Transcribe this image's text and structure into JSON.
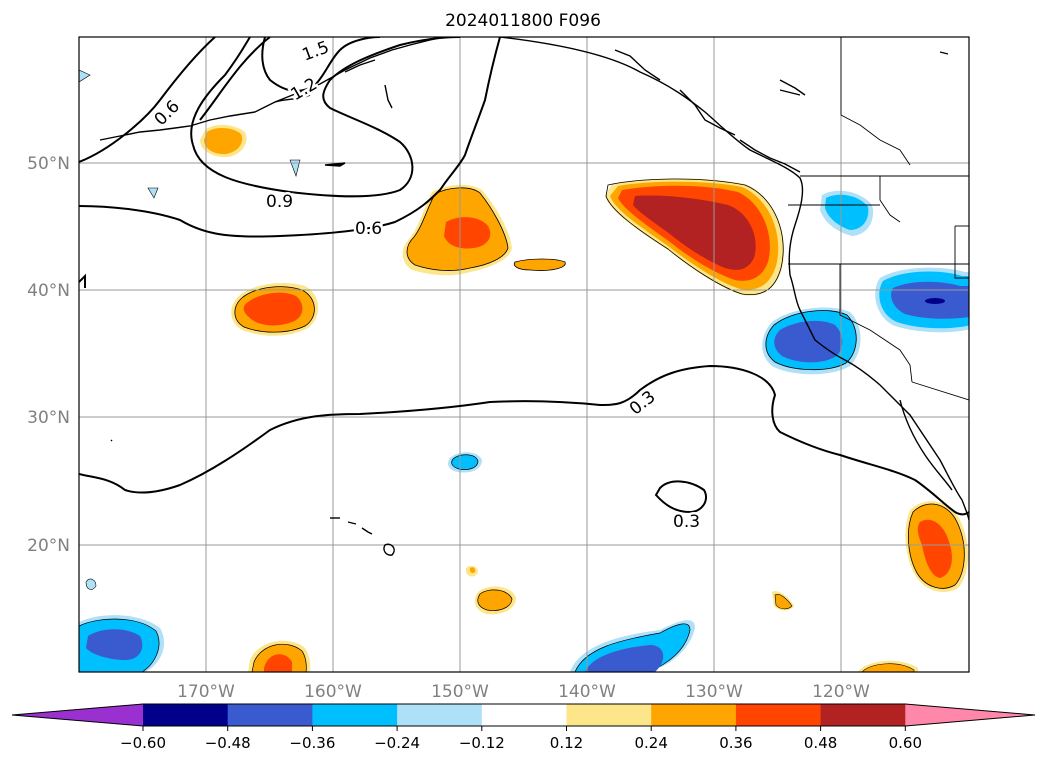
{
  "title": "2024011800 F096",
  "lon_labels": [
    "170°W",
    "160°W",
    "150°W",
    "140°W",
    "130°W",
    "120°W"
  ],
  "lat_labels": [
    "50°N",
    "40°N",
    "30°N",
    "20°N"
  ],
  "contour_labels": {
    "c06_top": "0.6",
    "c15": "1.5",
    "c12": "1.2",
    "c09": "0.9",
    "c06_mid": "0.6",
    "c03_main": "0.3",
    "c03_small": "0.3"
  },
  "colorbar": {
    "ticks": [
      "−0.60",
      "−0.48",
      "−0.36",
      "−0.24",
      "−0.12",
      "0.12",
      "0.24",
      "0.36",
      "0.48",
      "0.60"
    ],
    "colors": [
      "#9b30d0",
      "#00008b",
      "#3a5bd0",
      "#00bfff",
      "#aee0f8",
      "#ffffff",
      "#fde68a",
      "#ffa500",
      "#ff4500",
      "#b22222",
      "#ff88aa"
    ]
  },
  "colors": {
    "orange": "#ffa500",
    "red_orange": "#ff4500",
    "dark_red": "#b22222",
    "light_yellow": "#fde68a",
    "cyan": "#00bfff",
    "blue": "#3a5bd0",
    "navy": "#00008b",
    "light_blue": "#aee0f8"
  }
}
